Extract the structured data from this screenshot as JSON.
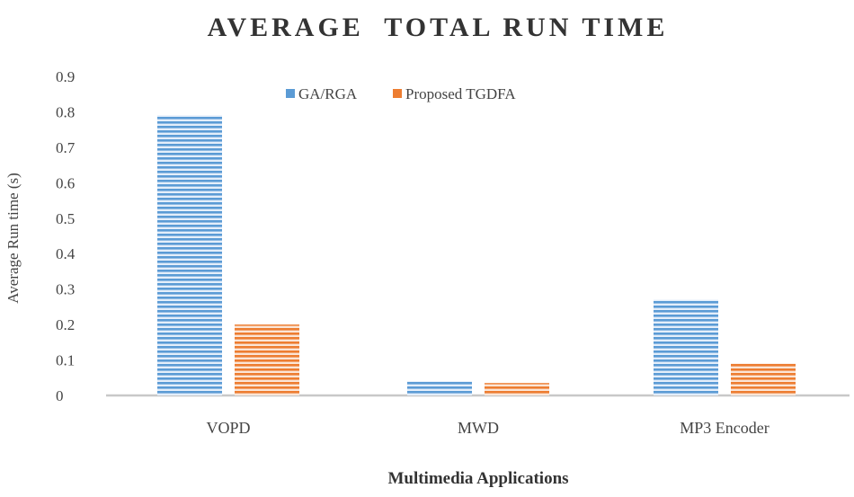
{
  "chart_data": {
    "type": "bar",
    "title": "AVERAGE  TOTAL RUN TIME",
    "xlabel": "Multimedia Applications",
    "ylabel": "Average Run time (s)",
    "categories": [
      "VOPD",
      "MWD",
      "MP3 Encoder"
    ],
    "series": [
      {
        "name": "GA/RGA",
        "values": [
          0.79,
          0.04,
          0.27
        ],
        "color": "#5b9bd5"
      },
      {
        "name": "Proposed TGDFA",
        "values": [
          0.2,
          0.035,
          0.09
        ],
        "color": "#ed7d31"
      }
    ],
    "ylim": [
      0,
      0.9
    ],
    "yticks": [
      "0",
      "0.1",
      "0.2",
      "0.3",
      "0.4",
      "0.5",
      "0.6",
      "0.7",
      "0.8",
      "0.9"
    ],
    "legend_position": "top-center",
    "grid": false
  }
}
